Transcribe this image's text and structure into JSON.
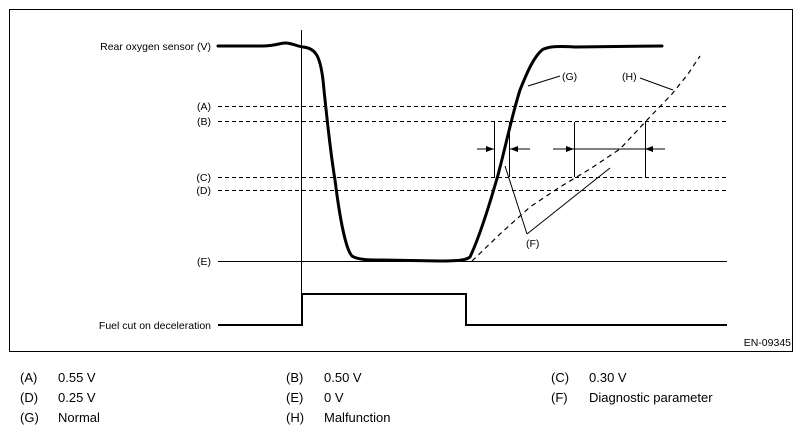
{
  "figure_id": "EN-09345",
  "signals": {
    "rear_o2": "Rear oxygen sensor (V)",
    "fuel_cut": "Fuel cut on deceleration"
  },
  "levels": {
    "A": "(A)",
    "B": "(B)",
    "C": "(C)",
    "D": "(D)",
    "E": "(E)"
  },
  "curve_labels": {
    "G": "(G)",
    "H": "(H)",
    "F": "(F)"
  },
  "legend": [
    {
      "letter": "(A)",
      "text": "0.55 V"
    },
    {
      "letter": "(B)",
      "text": "0.50 V"
    },
    {
      "letter": "(C)",
      "text": "0.30 V"
    },
    {
      "letter": "(D)",
      "text": "0.25 V"
    },
    {
      "letter": "(E)",
      "text": "0 V"
    },
    {
      "letter": "(F)",
      "text": "Diagnostic parameter"
    },
    {
      "letter": "(G)",
      "text": "Normal"
    },
    {
      "letter": "(H)",
      "text": "Malfunction"
    }
  ]
}
